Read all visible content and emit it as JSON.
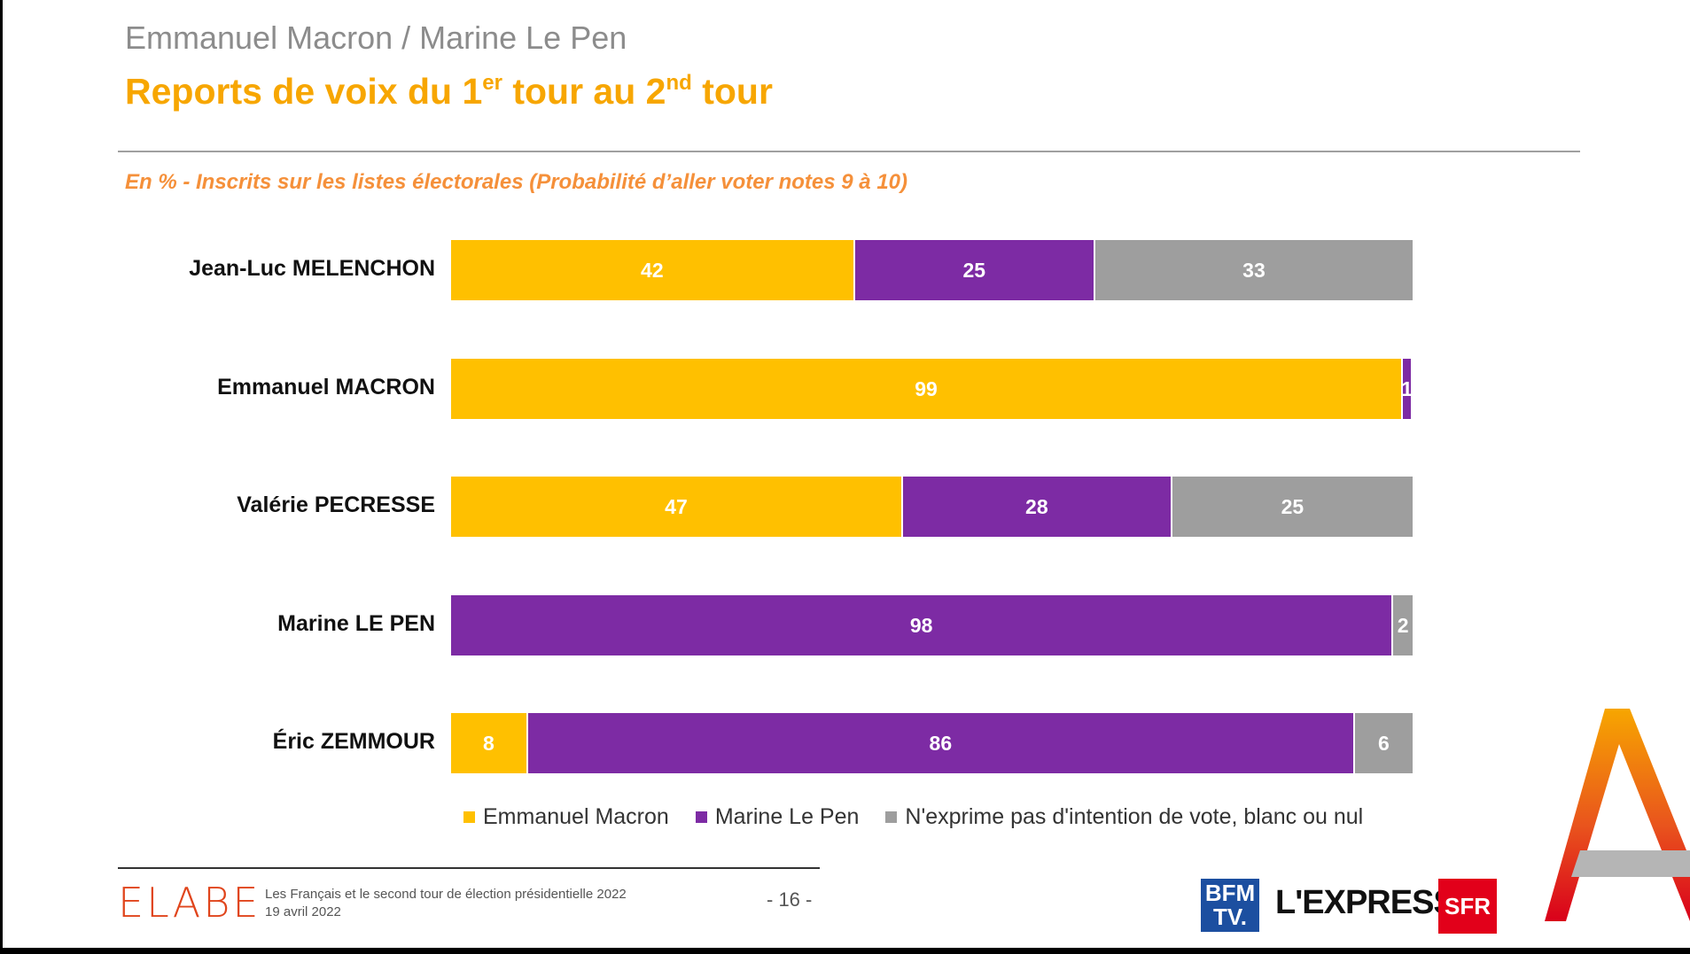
{
  "header": {
    "supertitle": "Emmanuel Macron / Marine Le Pen",
    "title_part1": "Reports de voix du 1",
    "title_sup1": "er",
    "title_part2": " tour au 2",
    "title_sup2": "nd",
    "title_part3": " tour",
    "subtitle": "En % - Inscrits sur les listes électorales (Probabilité d’aller voter notes 9 à 10)"
  },
  "chart_data": {
    "type": "bar",
    "orientation": "horizontal",
    "stacked": true,
    "categories": [
      "Jean-Luc MELENCHON",
      "Emmanuel MACRON",
      "Valérie PECRESSE",
      "Marine LE PEN",
      "Éric ZEMMOUR"
    ],
    "series": [
      {
        "name": "Emmanuel Macron",
        "color": "#ffc000",
        "values": [
          42,
          99,
          47,
          0,
          8
        ]
      },
      {
        "name": "Marine Le Pen",
        "color": "#7d2ba4",
        "values": [
          25,
          1,
          28,
          98,
          86
        ]
      },
      {
        "name": "N'exprime pas d'intention de vote, blanc ou nul",
        "color": "#9e9e9e",
        "values": [
          33,
          0,
          25,
          2,
          6
        ]
      }
    ],
    "xlim": [
      0,
      100
    ],
    "legend_position": "bottom"
  },
  "footer": {
    "logo": "ELABE",
    "text_line1": "Les Français et le second tour de élection présidentielle 2022",
    "text_line2": "19 avril 2022",
    "page": "- 16 -",
    "partner_bfm": "BFM TV.",
    "partner_express": "L'EXPRESS",
    "partner_sfr": "SFR"
  },
  "colors": {
    "title": "#f7a600",
    "subtitle": "#f5903a",
    "macron": "#ffc000",
    "lepen": "#7d2ba4",
    "abstention": "#9e9e9e"
  }
}
